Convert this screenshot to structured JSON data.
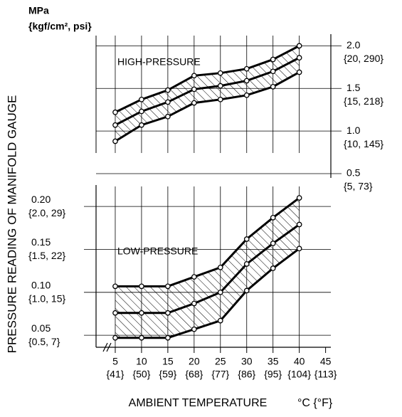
{
  "y_unit": "MPa",
  "y_unit_alt": "{kgf/cm², psi}",
  "y_label": "PRESSURE READING OF MANIFOLD GAUGE",
  "chart_data": [
    {
      "type": "line",
      "annotation": "HIGH-PRESSURE",
      "x": [
        5,
        10,
        15,
        20,
        25,
        30,
        35,
        40
      ],
      "series": [
        {
          "color": "#000000",
          "values": [
            1.22,
            1.37,
            1.48,
            1.65,
            1.68,
            1.73,
            1.84,
            2.0
          ]
        },
        {
          "color": "#000000",
          "values": [
            1.07,
            1.23,
            1.34,
            1.49,
            1.53,
            1.59,
            1.7,
            1.86
          ]
        },
        {
          "color": "#000000",
          "values": [
            0.88,
            1.07,
            1.17,
            1.33,
            1.37,
            1.42,
            1.52,
            1.69
          ]
        }
      ],
      "band": true,
      "ylim": [
        0.45,
        2.12
      ],
      "yticks": [
        {
          "value": 0.5,
          "label": "0.5"
        },
        {
          "value": 1.0,
          "label": "1.0"
        },
        {
          "value": 1.5,
          "label": "1.5"
        },
        {
          "value": 2.0,
          "label": "2.0"
        }
      ],
      "yticks_alt": [
        "{5, 73}",
        "{10, 145}",
        "{15, 218}",
        "{20, 290}"
      ],
      "axis_side": "right"
    },
    {
      "type": "line",
      "annotation": "LOW-PRESSURE",
      "x": [
        5,
        10,
        15,
        20,
        25,
        30,
        35,
        40
      ],
      "series": [
        {
          "color": "#000000",
          "values": [
            0.107,
            0.107,
            0.107,
            0.118,
            0.129,
            0.162,
            0.187,
            0.21
          ]
        },
        {
          "color": "#000000",
          "values": [
            0.076,
            0.076,
            0.076,
            0.087,
            0.1,
            0.133,
            0.157,
            0.179
          ]
        },
        {
          "color": "#000000",
          "values": [
            0.047,
            0.047,
            0.047,
            0.057,
            0.067,
            0.102,
            0.128,
            0.151
          ]
        }
      ],
      "band": true,
      "ylim": [
        0.036,
        0.225
      ],
      "yticks": [
        0.05,
        {
          "value": 0.1,
          "label": "0.10"
        },
        0.15,
        {
          "value": 0.2,
          "label": "0.20"
        }
      ],
      "yticks_alt": [
        "{0.5, 7}",
        "{1.0, 15}",
        "{1.5, 22}",
        "{2.0, 29}"
      ],
      "axis_side": "left",
      "xlim": [
        1.35,
        46
      ],
      "xticks": [
        5,
        10,
        15,
        20,
        25,
        30,
        35,
        40,
        45
      ],
      "xticks_alt": [
        "{41}",
        "{50}",
        "{59}",
        "{68}",
        "{77}",
        "{86}",
        "{95}",
        "{104}",
        "{113}"
      ],
      "x_label": "AMBIENT TEMPERATURE",
      "x_unit": "°C {°F}"
    }
  ]
}
